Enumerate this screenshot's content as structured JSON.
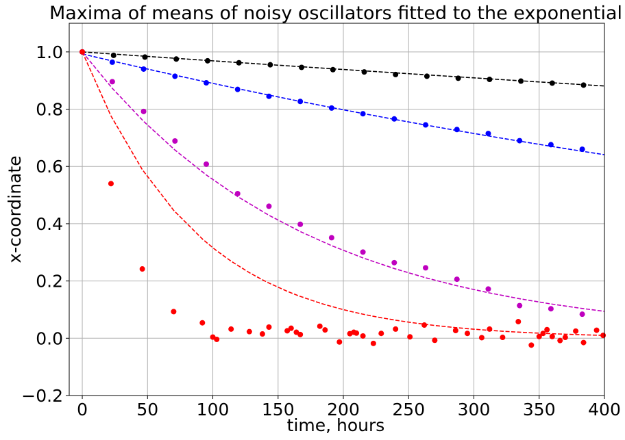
{
  "chart_data": {
    "type": "scatter",
    "title": "Maxima of means of noisy oscillators fitted to the exponential",
    "xlabel": "time, hours",
    "ylabel": "x-coordinate",
    "xlim": [
      -10,
      400
    ],
    "ylim": [
      -0.2,
      1.1
    ],
    "xticks": [
      0,
      50,
      100,
      150,
      200,
      250,
      300,
      350,
      400
    ],
    "yticks": [
      -0.2,
      0.0,
      0.2,
      0.4,
      0.6,
      0.8,
      1.0
    ],
    "xtick_labels": [
      "0",
      "50",
      "100",
      "150",
      "200",
      "250",
      "300",
      "350",
      "400"
    ],
    "ytick_labels": [
      "−0.2",
      "0.0",
      "0.2",
      "0.4",
      "0.6",
      "0.8",
      "1.0"
    ],
    "grid": true,
    "legend": false,
    "series": [
      {
        "color": "#000000",
        "x": [
          0,
          24,
          48,
          72,
          96,
          120,
          144,
          168,
          192,
          216,
          240,
          264,
          288,
          312,
          336,
          360,
          384
        ],
        "y": [
          1.0,
          0.988,
          0.982,
          0.975,
          0.969,
          0.962,
          0.955,
          0.946,
          0.938,
          0.93,
          0.921,
          0.915,
          0.908,
          0.904,
          0.898,
          0.891,
          0.884
        ],
        "fit": {
          "type": "exponential",
          "x": [
            0,
            400
          ],
          "y_start": 1.0,
          "y_end": 0.881
        }
      },
      {
        "color": "#0000ff",
        "x": [
          0,
          23,
          47,
          71,
          95,
          119,
          143,
          167,
          191,
          215,
          239,
          263,
          287,
          311,
          335,
          359,
          383
        ],
        "y": [
          1.0,
          0.964,
          0.94,
          0.915,
          0.892,
          0.869,
          0.845,
          0.827,
          0.804,
          0.784,
          0.766,
          0.745,
          0.729,
          0.715,
          0.69,
          0.676,
          0.66
        ],
        "fit": {
          "type": "exponential",
          "x": [
            0,
            400
          ],
          "y_start": 0.993,
          "y_end": 0.641
        }
      },
      {
        "color": "#bf00bf",
        "x": [
          0,
          23,
          47,
          71,
          95,
          119,
          143,
          167,
          191,
          215,
          239,
          263,
          287,
          311,
          335,
          359,
          383
        ],
        "y": [
          1.0,
          0.896,
          0.792,
          0.689,
          0.608,
          0.505,
          0.461,
          0.398,
          0.351,
          0.301,
          0.264,
          0.246,
          0.206,
          0.172,
          0.114,
          0.103,
          0.084
        ],
        "fit": {
          "type": "exponential",
          "x": [
            0,
            400
          ],
          "y_start": 1.0,
          "y_end": 0.094
        }
      },
      {
        "color": "#ff0000",
        "x": [
          0,
          22,
          46,
          70,
          92,
          100,
          103,
          114,
          128,
          138,
          143,
          157,
          160,
          164,
          167,
          182,
          186,
          197,
          205,
          208,
          210,
          215,
          223,
          229,
          240,
          251,
          262,
          270,
          286,
          295,
          306,
          312,
          322,
          334,
          344,
          350,
          353,
          356,
          360,
          366,
          370,
          378,
          384,
          394,
          399
        ],
        "y": [
          1.0,
          0.54,
          0.242,
          0.093,
          0.054,
          0.004,
          -0.004,
          0.032,
          0.023,
          0.015,
          0.039,
          0.026,
          0.035,
          0.021,
          0.013,
          0.042,
          0.029,
          -0.013,
          0.016,
          0.021,
          0.018,
          0.008,
          -0.018,
          0.017,
          0.032,
          0.005,
          0.046,
          -0.007,
          0.027,
          0.017,
          0.002,
          0.032,
          0.003,
          0.058,
          -0.024,
          0.006,
          0.017,
          0.03,
          0.006,
          -0.008,
          0.003,
          0.025,
          -0.015,
          0.028,
          0.01
        ],
        "fit": {
          "type": "exponential",
          "x": [
            0,
            400
          ],
          "y_start": 1.0,
          "y_end": 0.01
        }
      }
    ]
  }
}
